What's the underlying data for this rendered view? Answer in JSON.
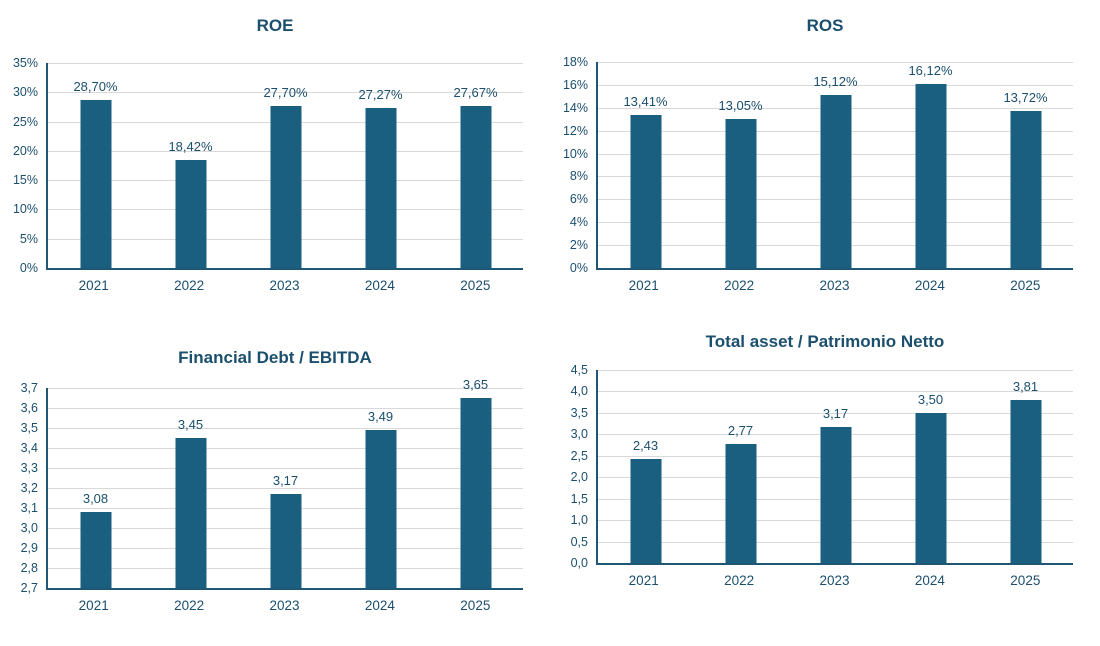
{
  "colors": {
    "bar": "#1A5F80",
    "text": "#1B4F6E",
    "axis": "#1F5673",
    "grid": "#D9D9D9",
    "background": "#FFFFFF"
  },
  "chart_data": [
    {
      "type": "bar",
      "title": "ROE",
      "categories": [
        "2021",
        "2022",
        "2023",
        "2024",
        "2025"
      ],
      "values": [
        28.7,
        18.42,
        27.7,
        27.27,
        27.67
      ],
      "value_labels": [
        "28,70%",
        "18,42%",
        "27,70%",
        "27,27%",
        "27,67%"
      ],
      "ylim": [
        0,
        35
      ],
      "y_tick_labels": [
        "35%",
        "30%",
        "25%",
        "20%",
        "15%",
        "10%",
        "5%",
        "0%"
      ],
      "xlabel": "",
      "ylabel": "",
      "grid": "on",
      "legend": "none"
    },
    {
      "type": "bar",
      "title": "ROS",
      "categories": [
        "2021",
        "2022",
        "2023",
        "2024",
        "2025"
      ],
      "values": [
        13.41,
        13.05,
        15.12,
        16.12,
        13.72
      ],
      "value_labels": [
        "13,41%",
        "13,05%",
        "15,12%",
        "16,12%",
        "13,72%"
      ],
      "ylim": [
        0,
        18
      ],
      "y_tick_labels": [
        "18%",
        "16%",
        "14%",
        "12%",
        "10%",
        "8%",
        "6%",
        "4%",
        "2%",
        "0%"
      ],
      "xlabel": "",
      "ylabel": "",
      "grid": "on",
      "legend": "none"
    },
    {
      "type": "bar",
      "title": "Financial Debt / EBITDA",
      "categories": [
        "2021",
        "2022",
        "2023",
        "2024",
        "2025"
      ],
      "values": [
        3.08,
        3.45,
        3.17,
        3.49,
        3.65
      ],
      "value_labels": [
        "3,08",
        "3,45",
        "3,17",
        "3,49",
        "3,65"
      ],
      "ylim": [
        2.7,
        3.7
      ],
      "y_tick_labels": [
        "3,7",
        "3,6",
        "3,5",
        "3,4",
        "3,3",
        "3,2",
        "3,1",
        "3,0",
        "2,9",
        "2,8",
        "2,7"
      ],
      "xlabel": "",
      "ylabel": "",
      "grid": "on",
      "legend": "none"
    },
    {
      "type": "bar",
      "title": "Total asset /  Patrimonio Netto",
      "categories": [
        "2021",
        "2022",
        "2023",
        "2024",
        "2025"
      ],
      "values": [
        2.43,
        2.77,
        3.17,
        3.5,
        3.81
      ],
      "value_labels": [
        "2,43",
        "2,77",
        "3,17",
        "3,50",
        "3,81"
      ],
      "ylim": [
        0,
        4.5
      ],
      "y_tick_labels": [
        "4,5",
        "4,0",
        "3,5",
        "3,0",
        "2,5",
        "2,0",
        "1,5",
        "1,0",
        "0,5",
        "0,0"
      ],
      "xlabel": "",
      "ylabel": "",
      "grid": "on",
      "legend": "none"
    }
  ]
}
